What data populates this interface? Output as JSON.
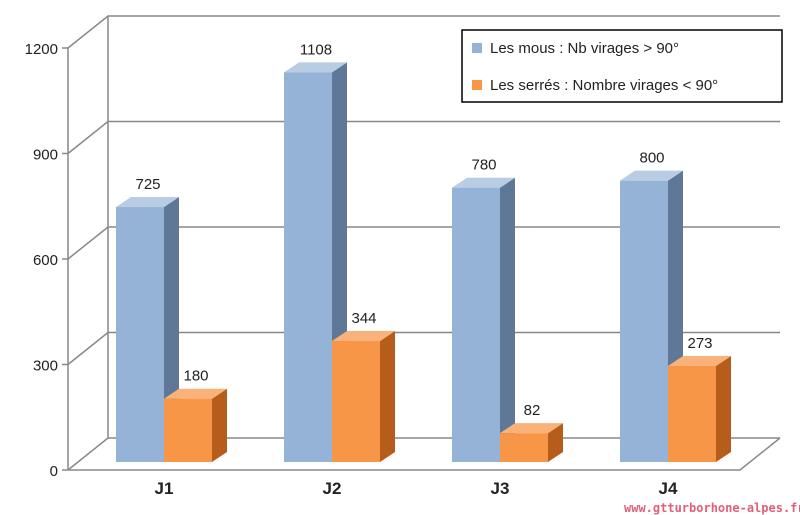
{
  "chart_data": {
    "type": "bar",
    "title": "",
    "xlabel": "",
    "ylabel": "",
    "ylim": [
      0,
      1200
    ],
    "yticks": [
      0,
      300,
      600,
      900,
      1200
    ],
    "categories": [
      "J1",
      "J2",
      "J3",
      "J4"
    ],
    "series": [
      {
        "name": "Les mous : Nb virages > 90°",
        "values": [
          725,
          1108,
          780,
          800
        ],
        "color": "#95b3d7"
      },
      {
        "name": "Les serrés : Nombre virages < 90°",
        "values": [
          180,
          344,
          82,
          273
        ],
        "color": "#f79646"
      }
    ],
    "grid": true,
    "legend": "top-right"
  },
  "watermark": "www.gtturborhone-alpes.fr"
}
